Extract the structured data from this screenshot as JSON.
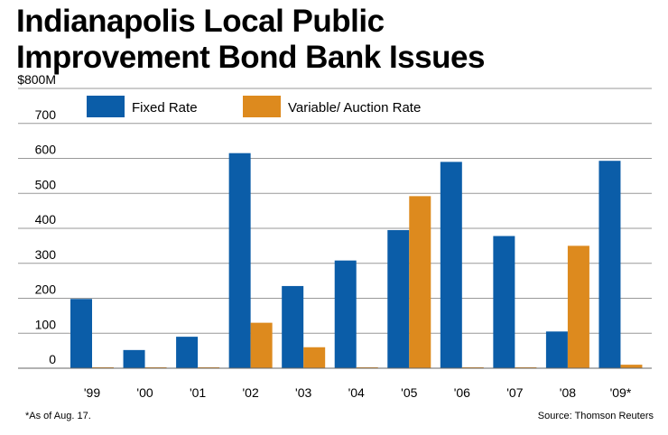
{
  "chart_data": {
    "type": "bar",
    "title": "Indianapolis Local Public Improvement Bond Bank Issues",
    "title_lines": [
      "Indianapolis Local Public",
      "Improvement Bond Bank Issues"
    ],
    "categories": [
      "'99",
      "'00",
      "'01",
      "'02",
      "'03",
      "'04",
      "'05",
      "'06",
      "'07",
      "'08",
      "'09*"
    ],
    "series": [
      {
        "name": "Fixed Rate",
        "color": "#0b5da8",
        "values": [
          198,
          52,
          90,
          615,
          235,
          308,
          395,
          590,
          378,
          105,
          593
        ]
      },
      {
        "name": "Variable/ Auction Rate",
        "color": "#dd8a1e",
        "values": [
          0,
          0,
          0,
          130,
          60,
          0,
          492,
          0,
          0,
          350,
          10
        ]
      }
    ],
    "y_tick_labels": [
      "0",
      "100",
      "200",
      "300",
      "400",
      "500",
      "600",
      "700",
      "$800M"
    ],
    "ylim": [
      0,
      800
    ],
    "grid": true,
    "legend_placement": "top-left",
    "footnote": "*As of Aug. 17.",
    "source": "Source: Thomson Reuters"
  }
}
